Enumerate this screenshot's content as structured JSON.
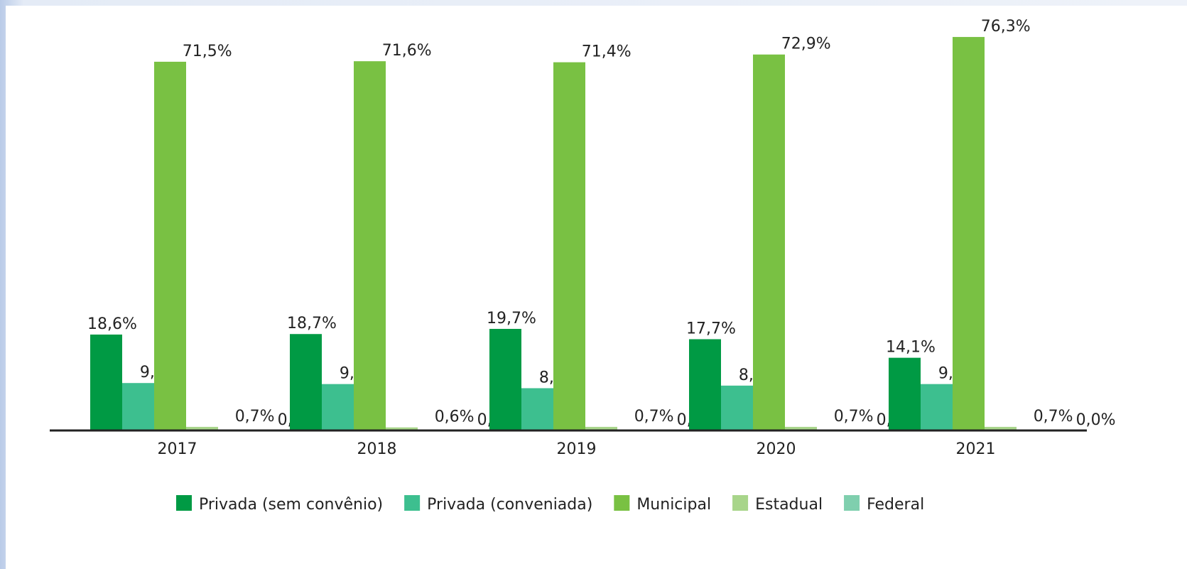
{
  "chart_data": {
    "type": "bar",
    "categories": [
      "2017",
      "2018",
      "2019",
      "2020",
      "2021"
    ],
    "series": [
      {
        "name": "Privada (sem convênio)",
        "color": "#009a44",
        "values": [
          18.6,
          18.7,
          19.7,
          17.7,
          14.1
        ],
        "value_labels": [
          "18,6%",
          "18,7%",
          "19,7%",
          "17,7%",
          "14,1%"
        ]
      },
      {
        "name": "Privada (conveniada)",
        "color": "#3dbf8f",
        "values": [
          9.2,
          9.0,
          8.2,
          8.7,
          9.0
        ],
        "value_labels": [
          "9,2%",
          "9,0%",
          "8,2%",
          "8,7%",
          "9,0%"
        ]
      },
      {
        "name": "Municipal",
        "color": "#79c143",
        "values": [
          71.5,
          71.6,
          71.4,
          72.9,
          76.3
        ],
        "value_labels": [
          "71,5%",
          "71,6%",
          "71,4%",
          "72,9%",
          "76,3%"
        ]
      },
      {
        "name": "Estadual",
        "color": "#a8d58a",
        "values": [
          0.7,
          0.6,
          0.7,
          0.7,
          0.7
        ],
        "value_labels": [
          "0,7%",
          "0,6%",
          "0,7%",
          "0,7%",
          "0,7%"
        ]
      },
      {
        "name": "Federal",
        "color": "#7fcfae",
        "values": [
          0.0,
          0.0,
          0.0,
          0.0,
          0.0
        ],
        "value_labels": [
          "0,0%",
          "0,0%",
          "0,0%",
          "0,0%",
          "0,0%"
        ]
      }
    ]
  }
}
